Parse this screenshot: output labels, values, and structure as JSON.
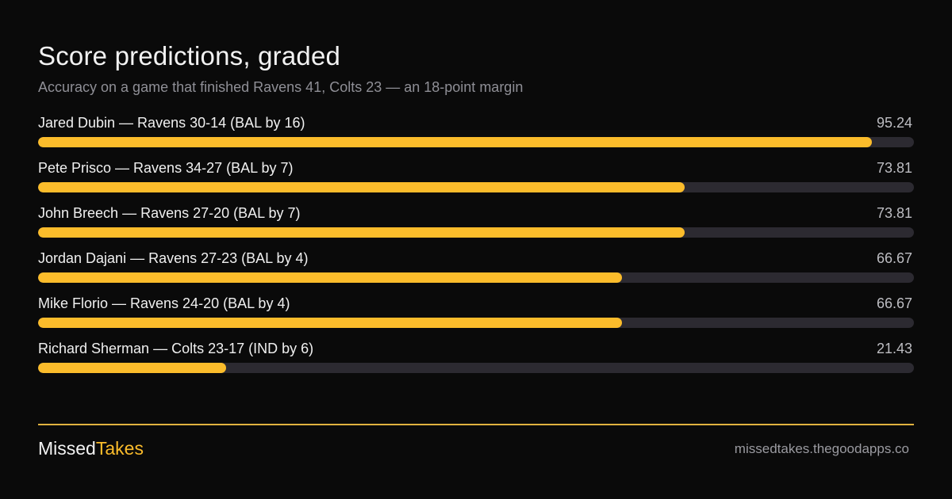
{
  "title": "Score predictions, graded",
  "subtitle": "Accuracy on a game that finished Ravens 41, Colts 23 — an 18-point margin",
  "colors": {
    "accent": "#fbbc2b",
    "track": "#2c2a31",
    "divider": "#e0b23f"
  },
  "chart_data": {
    "type": "bar",
    "orientation": "horizontal",
    "xlim": [
      0,
      100
    ],
    "grid": false,
    "categories": [
      "Jared Dubin — Ravens 30-14 (BAL by 16)",
      "Pete Prisco — Ravens 34-27 (BAL by 7)",
      "John Breech — Ravens 27-20 (BAL by 7)",
      "Jordan Dajani — Ravens 27-23 (BAL by 4)",
      "Mike Florio — Ravens 24-20 (BAL by 4)",
      "Richard Sherman — Colts 23-17 (IND by 6)"
    ],
    "values": [
      95.24,
      73.81,
      73.81,
      66.67,
      66.67,
      21.43
    ],
    "value_labels": [
      "95.24",
      "73.81",
      "73.81",
      "66.67",
      "66.67",
      "21.43"
    ]
  },
  "footer": {
    "brand_part1": "Missed",
    "brand_part2": "Takes",
    "site": "missedtakes.thegoodapps.co"
  }
}
